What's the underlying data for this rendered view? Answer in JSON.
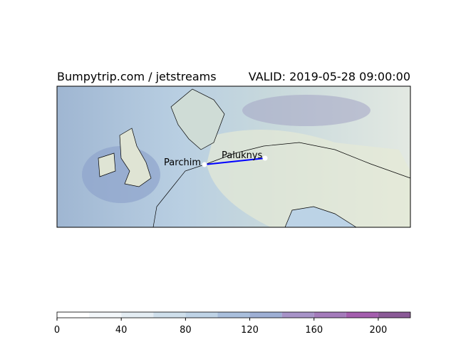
{
  "header": {
    "left": "Bumpytrip.com / jetstreams",
    "right": "VALID: 2019-05-28 09:00:00"
  },
  "places": [
    {
      "label": "Parchim"
    },
    {
      "label": "Paluknys"
    }
  ],
  "colorbar": {
    "lim": [
      0,
      220
    ],
    "levels": [
      0,
      20,
      40,
      60,
      80,
      100,
      120,
      140,
      160,
      180,
      200,
      220
    ],
    "colors": [
      "#ffffff",
      "#f3f7fa",
      "#e4edf3",
      "#cfdfeb",
      "#bfd3e6",
      "#a9bfdc",
      "#9eafd4",
      "#a793c8",
      "#a47bbb",
      "#a45eae",
      "#8b5a97"
    ],
    "ticks": [
      0,
      40,
      80,
      120,
      160,
      200
    ]
  }
}
